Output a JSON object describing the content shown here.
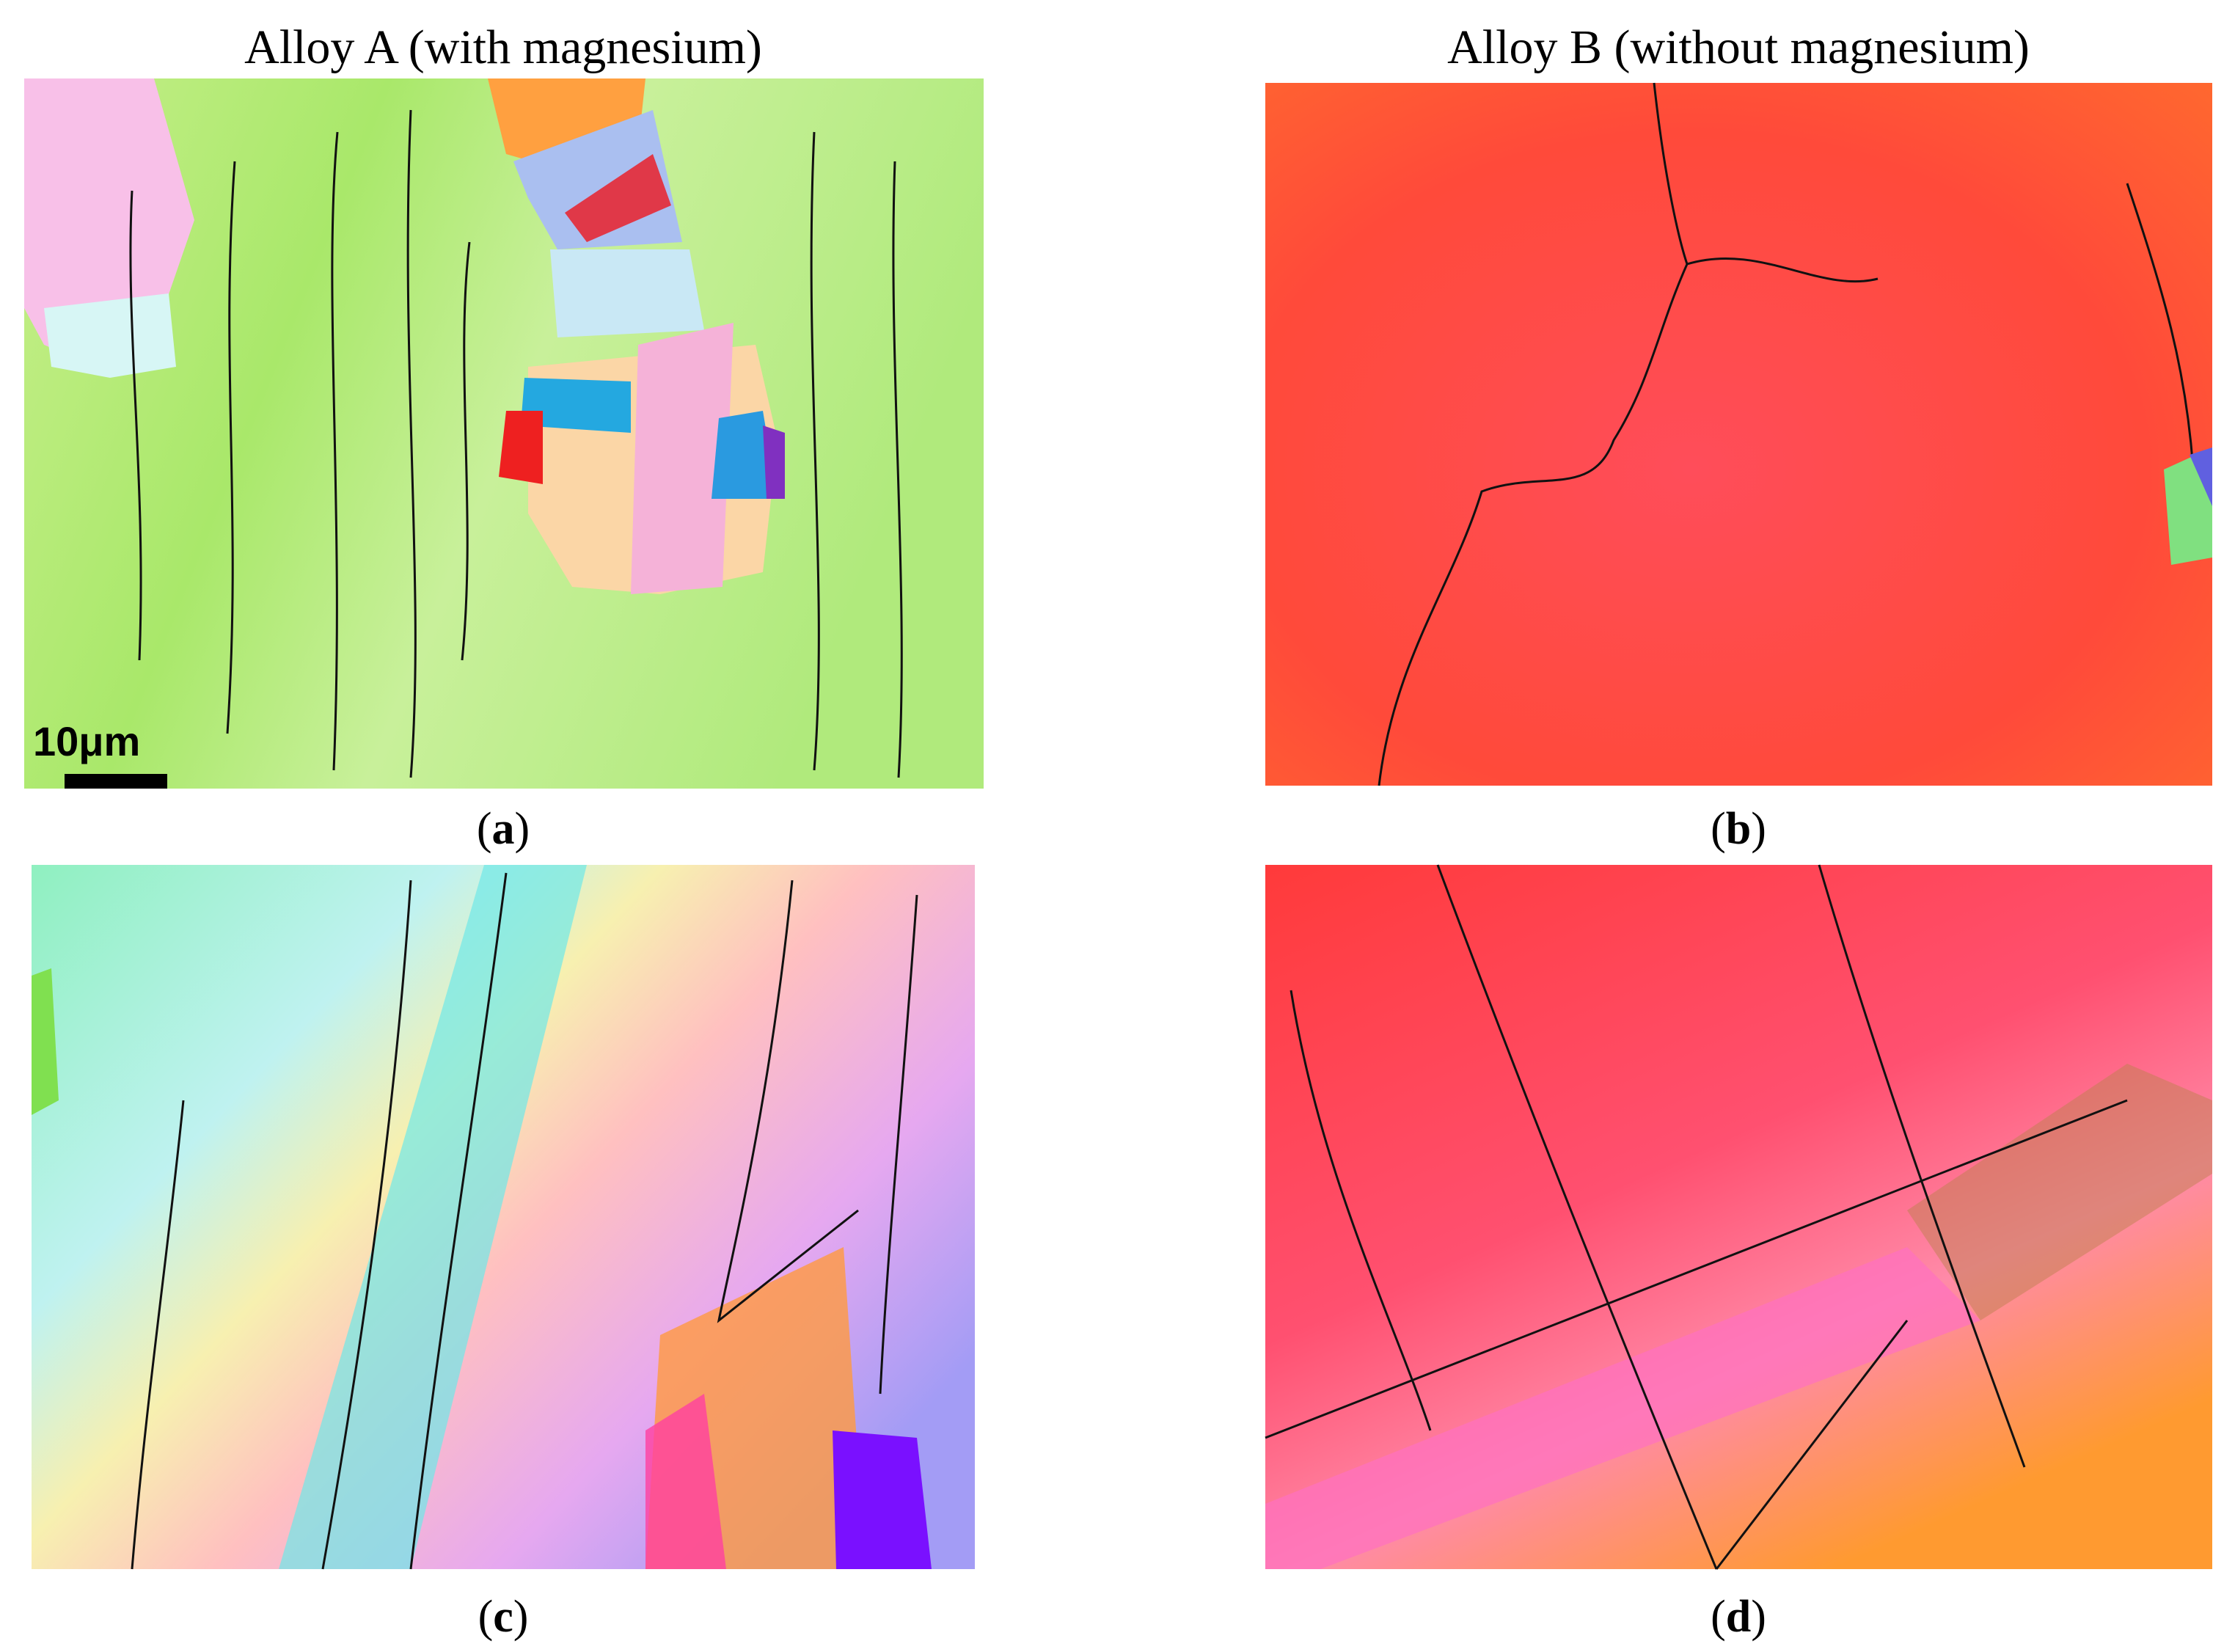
{
  "columns": [
    {
      "title": "Alloy A (with magnesium)"
    },
    {
      "title": "Alloy B (without magnesium)"
    }
  ],
  "panels": [
    {
      "label": [
        "(",
        "a",
        ")"
      ]
    },
    {
      "label": [
        "(",
        "b",
        ")"
      ]
    },
    {
      "label": [
        "(",
        "c",
        ")"
      ]
    },
    {
      "label": [
        "(",
        "d",
        ")"
      ]
    }
  ],
  "scale_bar": "10μm"
}
